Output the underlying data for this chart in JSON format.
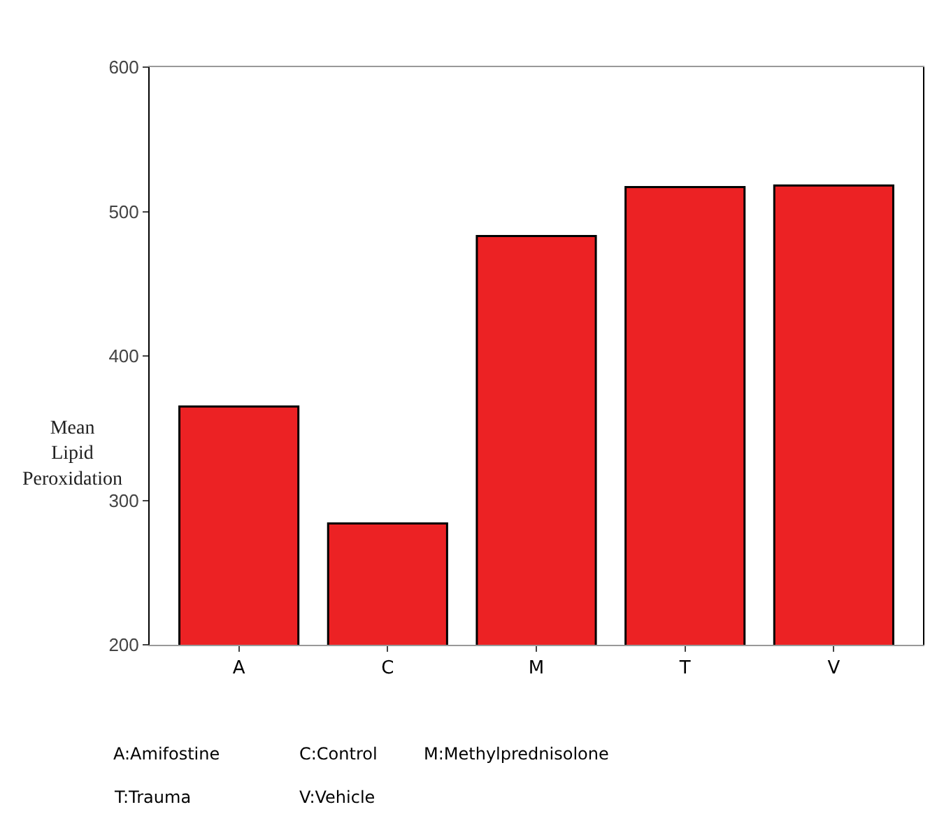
{
  "chart_data": {
    "type": "bar",
    "ylabel": "Mean Lipid Peroxidation",
    "categories": [
      "A",
      "C",
      "M",
      "T",
      "V"
    ],
    "values": [
      365,
      284,
      483,
      517,
      518
    ],
    "color": "#ec2224",
    "ylim": [
      200,
      600
    ],
    "yticks": [
      200,
      300,
      400,
      500,
      600
    ],
    "annotations": [
      "A:Amifostine",
      "C:Control",
      "M:Methylprednisolone",
      "T:Trauma",
      "V:Vehicle"
    ]
  }
}
